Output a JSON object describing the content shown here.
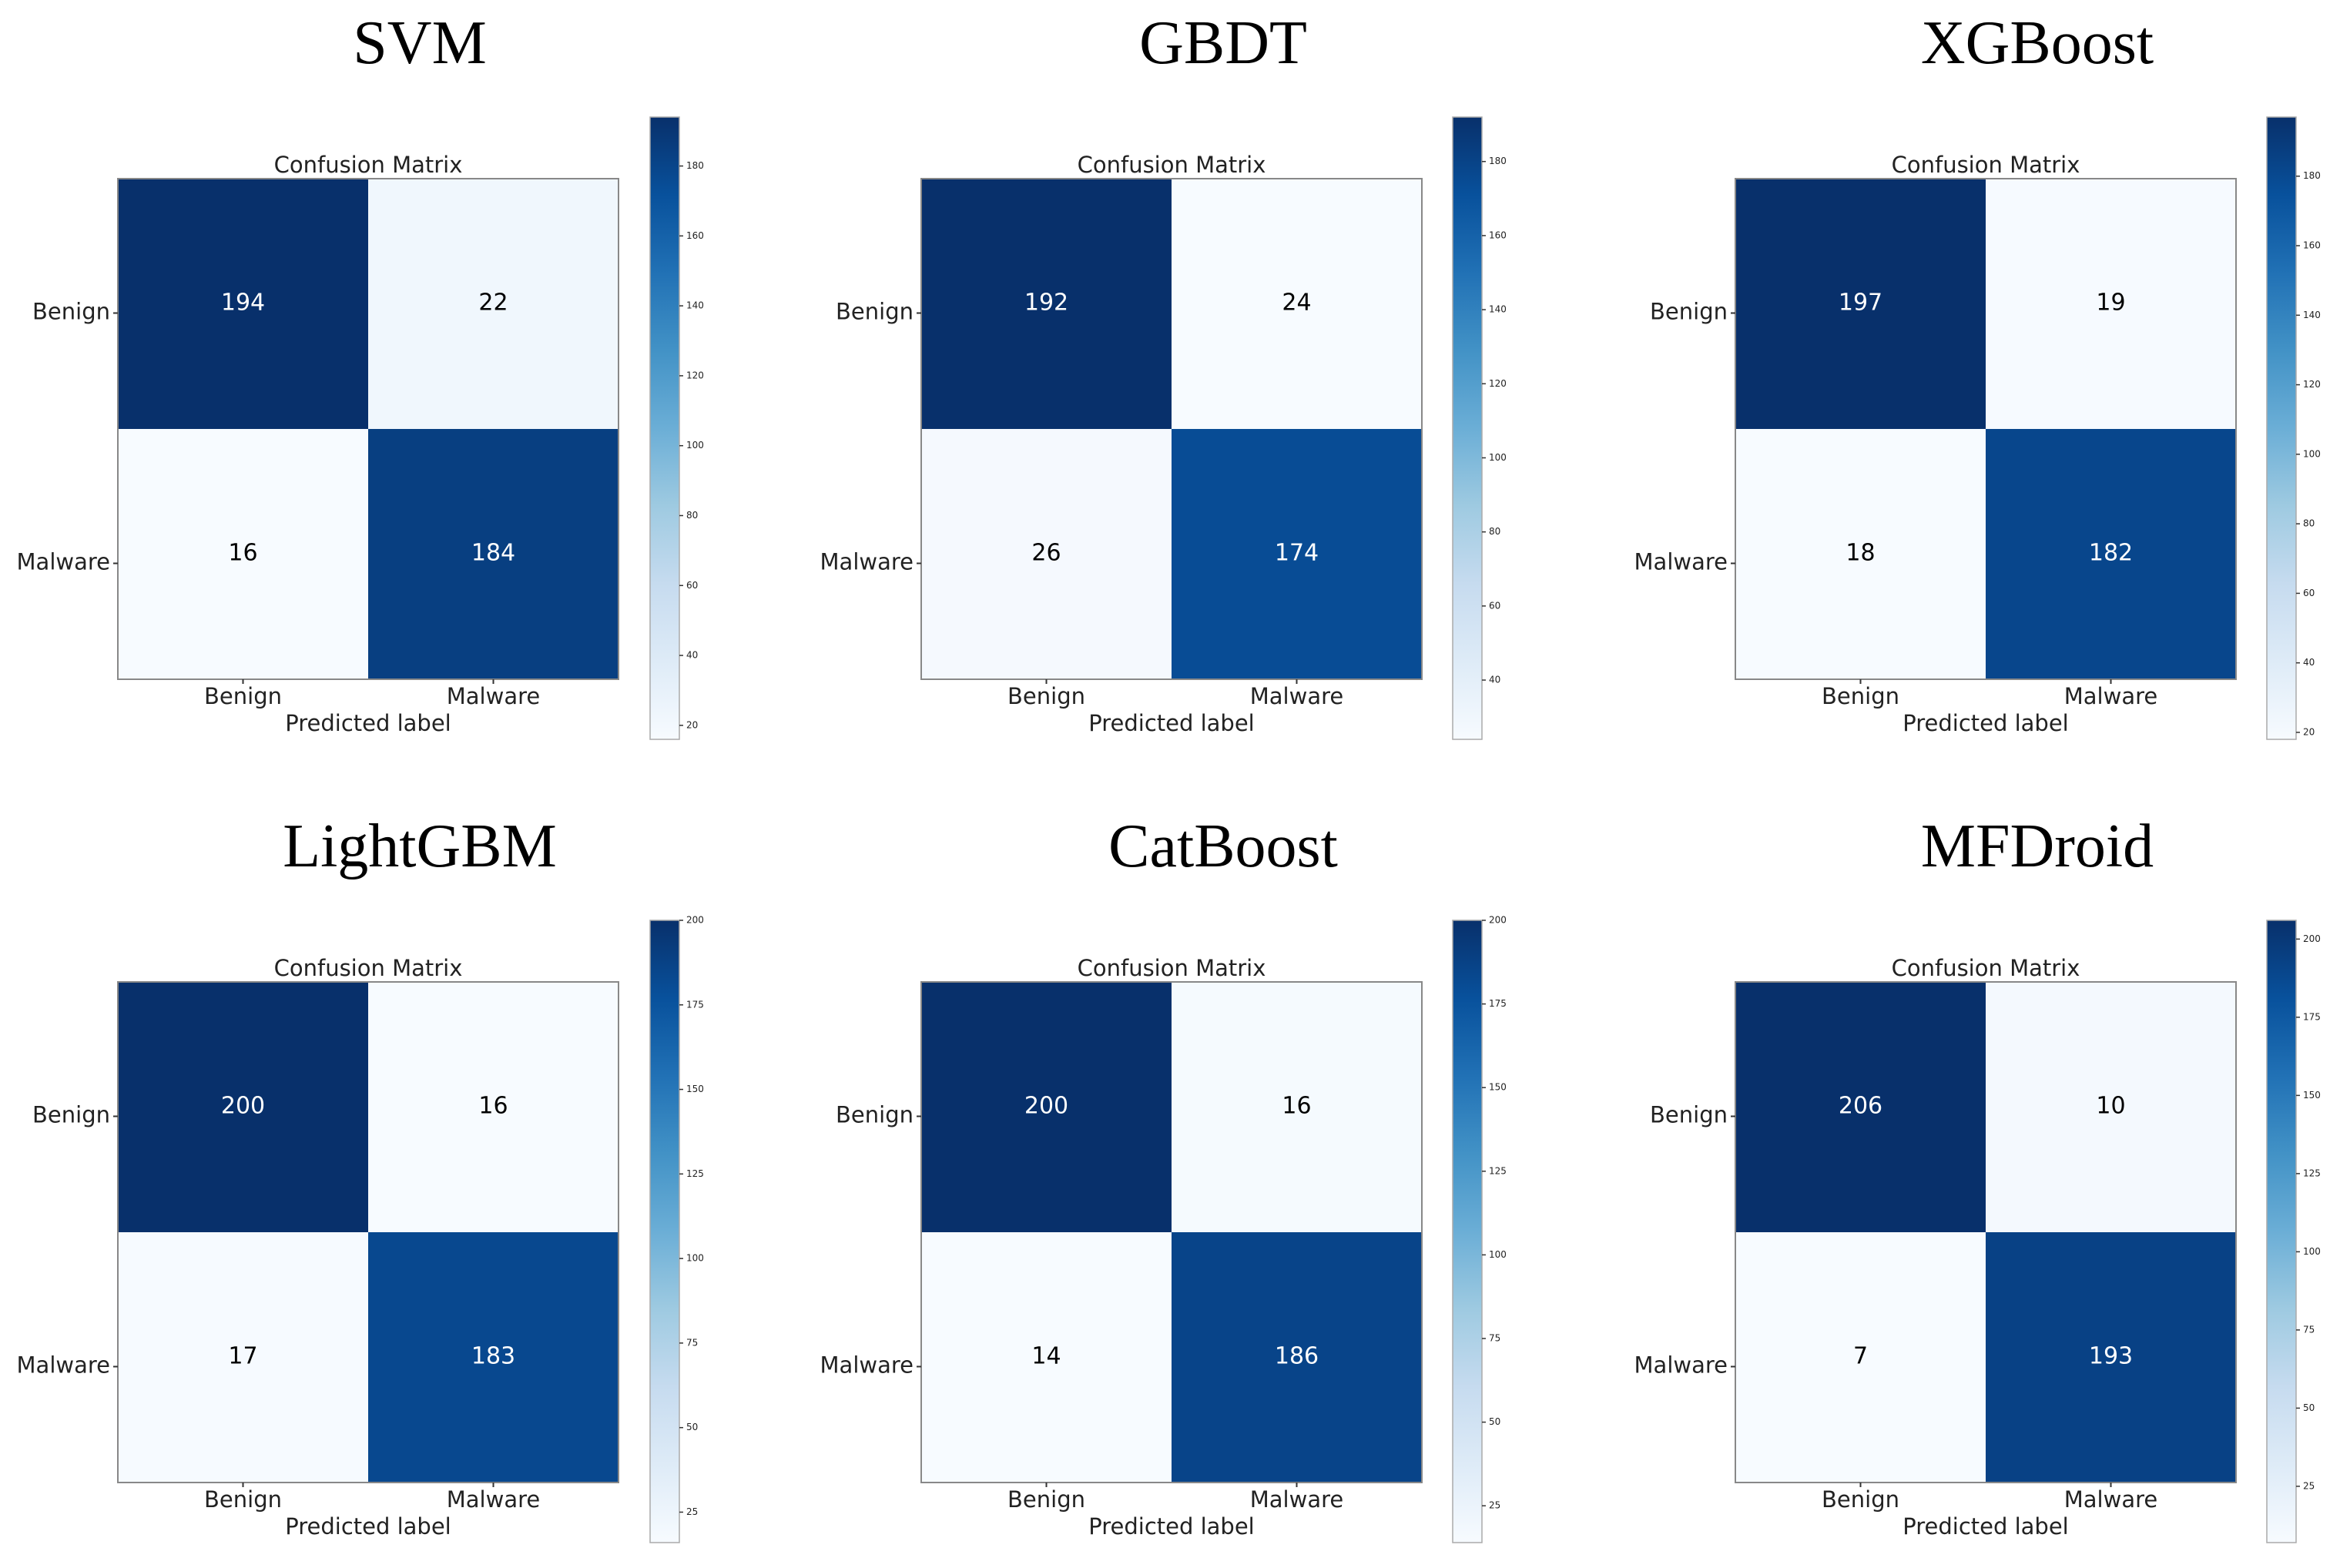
{
  "figure": {
    "panel_subtitle": "Confusion Matrix",
    "xlabel": "Predicted label",
    "class_labels": [
      "Benign",
      "Malware"
    ]
  },
  "chart_data": [
    {
      "type": "heatmap",
      "model": "SVM",
      "title": "Confusion Matrix",
      "xlabel": "Predicted label",
      "rows": [
        "Benign",
        "Malware"
      ],
      "cols": [
        "Benign",
        "Malware"
      ],
      "values": [
        [
          194,
          22
        ],
        [
          16,
          184
        ]
      ],
      "colormap": "Blues",
      "vmin": 16,
      "vmax": 194,
      "colorbar_ticks": [
        "20",
        "40",
        "60",
        "80",
        "100",
        "120",
        "140",
        "160",
        "180"
      ]
    },
    {
      "type": "heatmap",
      "model": "GBDT",
      "title": "Confusion Matrix",
      "xlabel": "Predicted label",
      "rows": [
        "Benign",
        "Malware"
      ],
      "cols": [
        "Benign",
        "Malware"
      ],
      "values": [
        [
          192,
          24
        ],
        [
          26,
          174
        ]
      ],
      "colormap": "Blues",
      "vmin": 24,
      "vmax": 192,
      "colorbar_ticks": [
        "40",
        "60",
        "80",
        "100",
        "120",
        "140",
        "160",
        "180"
      ]
    },
    {
      "type": "heatmap",
      "model": "XGBoost",
      "title": "Confusion Matrix",
      "xlabel": "Predicted label",
      "rows": [
        "Benign",
        "Malware"
      ],
      "cols": [
        "Benign",
        "Malware"
      ],
      "values": [
        [
          197,
          19
        ],
        [
          18,
          182
        ]
      ],
      "colormap": "Blues",
      "vmin": 18,
      "vmax": 197,
      "colorbar_ticks": [
        "20",
        "40",
        "60",
        "80",
        "100",
        "120",
        "140",
        "160",
        "180"
      ]
    },
    {
      "type": "heatmap",
      "model": "LightGBM",
      "title": "Confusion Matrix",
      "xlabel": "Predicted label",
      "rows": [
        "Benign",
        "Malware"
      ],
      "cols": [
        "Benign",
        "Malware"
      ],
      "values": [
        [
          200,
          16
        ],
        [
          17,
          183
        ]
      ],
      "colormap": "Blues",
      "vmin": 16,
      "vmax": 200,
      "colorbar_ticks": [
        "25",
        "50",
        "75",
        "100",
        "125",
        "150",
        "175",
        "200"
      ]
    },
    {
      "type": "heatmap",
      "model": "CatBoost",
      "title": "Confusion Matrix",
      "xlabel": "Predicted label",
      "rows": [
        "Benign",
        "Malware"
      ],
      "cols": [
        "Benign",
        "Malware"
      ],
      "values": [
        [
          200,
          16
        ],
        [
          14,
          186
        ]
      ],
      "colormap": "Blues",
      "vmin": 14,
      "vmax": 200,
      "colorbar_ticks": [
        "25",
        "50",
        "75",
        "100",
        "125",
        "150",
        "175",
        "200"
      ]
    },
    {
      "type": "heatmap",
      "model": "MFDroid",
      "title": "Confusion Matrix",
      "xlabel": "Predicted label",
      "rows": [
        "Benign",
        "Malware"
      ],
      "cols": [
        "Benign",
        "Malware"
      ],
      "values": [
        [
          206,
          10
        ],
        [
          7,
          193
        ]
      ],
      "colormap": "Blues",
      "vmin": 7,
      "vmax": 206,
      "colorbar_ticks": [
        "25",
        "50",
        "75",
        "100",
        "125",
        "150",
        "175",
        "200"
      ]
    }
  ]
}
